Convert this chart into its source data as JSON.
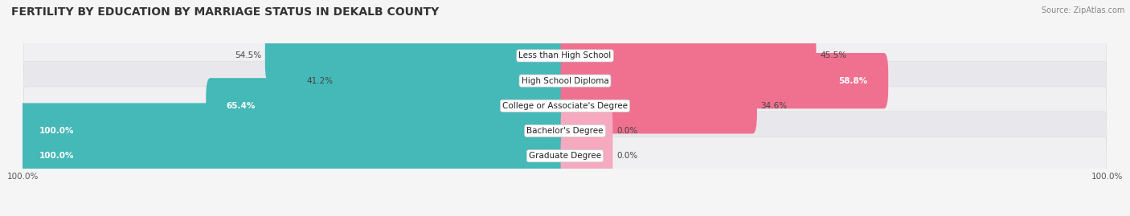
{
  "title": "FERTILITY BY EDUCATION BY MARRIAGE STATUS IN DEKALB COUNTY",
  "source": "Source: ZipAtlas.com",
  "categories": [
    "Less than High School",
    "High School Diploma",
    "College or Associate's Degree",
    "Bachelor's Degree",
    "Graduate Degree"
  ],
  "married_pct": [
    54.5,
    41.2,
    65.4,
    100.0,
    100.0
  ],
  "unmarried_pct": [
    45.5,
    58.8,
    34.6,
    0.0,
    0.0
  ],
  "married_color": "#45b8b8",
  "unmarried_color": "#f07090",
  "row_bg_color_odd": "#f0f0f2",
  "row_bg_color_even": "#e8e8ec",
  "title_fontsize": 10,
  "label_fontsize": 7.5,
  "pct_fontsize": 7.5,
  "bar_height": 0.62,
  "figsize": [
    14.06,
    2.69
  ],
  "dpi": 100,
  "xlim": 100,
  "bg_color": "#f5f5f5"
}
